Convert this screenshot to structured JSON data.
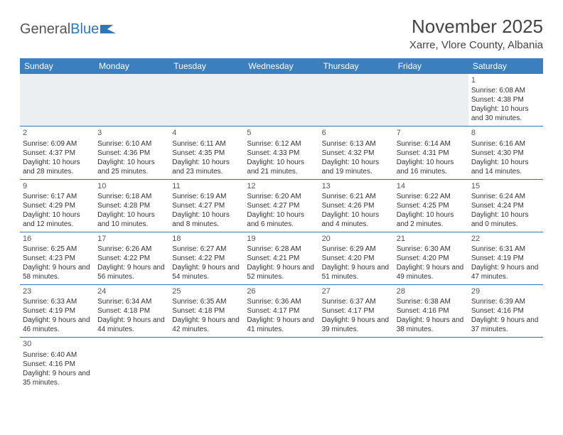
{
  "logo": {
    "text_general": "General",
    "text_blue": "Blue"
  },
  "header": {
    "title": "November 2025",
    "location": "Xarre, Vlore County, Albania"
  },
  "colors": {
    "header_bg": "#3b7fbf",
    "header_text": "#ffffff",
    "border": "#2f77b7",
    "text": "#333333",
    "empty_bg": "#eceff1",
    "logo_blue": "#2f77b7",
    "logo_gray": "#555555"
  },
  "calendar": {
    "weekdays": [
      "Sunday",
      "Monday",
      "Tuesday",
      "Wednesday",
      "Thursday",
      "Friday",
      "Saturday"
    ],
    "weeks": [
      [
        null,
        null,
        null,
        null,
        null,
        null,
        {
          "day": "1",
          "sunrise": "Sunrise: 6:08 AM",
          "sunset": "Sunset: 4:38 PM",
          "daylight": "Daylight: 10 hours and 30 minutes."
        }
      ],
      [
        {
          "day": "2",
          "sunrise": "Sunrise: 6:09 AM",
          "sunset": "Sunset: 4:37 PM",
          "daylight": "Daylight: 10 hours and 28 minutes."
        },
        {
          "day": "3",
          "sunrise": "Sunrise: 6:10 AM",
          "sunset": "Sunset: 4:36 PM",
          "daylight": "Daylight: 10 hours and 25 minutes."
        },
        {
          "day": "4",
          "sunrise": "Sunrise: 6:11 AM",
          "sunset": "Sunset: 4:35 PM",
          "daylight": "Daylight: 10 hours and 23 minutes."
        },
        {
          "day": "5",
          "sunrise": "Sunrise: 6:12 AM",
          "sunset": "Sunset: 4:33 PM",
          "daylight": "Daylight: 10 hours and 21 minutes."
        },
        {
          "day": "6",
          "sunrise": "Sunrise: 6:13 AM",
          "sunset": "Sunset: 4:32 PM",
          "daylight": "Daylight: 10 hours and 19 minutes."
        },
        {
          "day": "7",
          "sunrise": "Sunrise: 6:14 AM",
          "sunset": "Sunset: 4:31 PM",
          "daylight": "Daylight: 10 hours and 16 minutes."
        },
        {
          "day": "8",
          "sunrise": "Sunrise: 6:16 AM",
          "sunset": "Sunset: 4:30 PM",
          "daylight": "Daylight: 10 hours and 14 minutes."
        }
      ],
      [
        {
          "day": "9",
          "sunrise": "Sunrise: 6:17 AM",
          "sunset": "Sunset: 4:29 PM",
          "daylight": "Daylight: 10 hours and 12 minutes."
        },
        {
          "day": "10",
          "sunrise": "Sunrise: 6:18 AM",
          "sunset": "Sunset: 4:28 PM",
          "daylight": "Daylight: 10 hours and 10 minutes."
        },
        {
          "day": "11",
          "sunrise": "Sunrise: 6:19 AM",
          "sunset": "Sunset: 4:27 PM",
          "daylight": "Daylight: 10 hours and 8 minutes."
        },
        {
          "day": "12",
          "sunrise": "Sunrise: 6:20 AM",
          "sunset": "Sunset: 4:27 PM",
          "daylight": "Daylight: 10 hours and 6 minutes."
        },
        {
          "day": "13",
          "sunrise": "Sunrise: 6:21 AM",
          "sunset": "Sunset: 4:26 PM",
          "daylight": "Daylight: 10 hours and 4 minutes."
        },
        {
          "day": "14",
          "sunrise": "Sunrise: 6:22 AM",
          "sunset": "Sunset: 4:25 PM",
          "daylight": "Daylight: 10 hours and 2 minutes."
        },
        {
          "day": "15",
          "sunrise": "Sunrise: 6:24 AM",
          "sunset": "Sunset: 4:24 PM",
          "daylight": "Daylight: 10 hours and 0 minutes."
        }
      ],
      [
        {
          "day": "16",
          "sunrise": "Sunrise: 6:25 AM",
          "sunset": "Sunset: 4:23 PM",
          "daylight": "Daylight: 9 hours and 58 minutes."
        },
        {
          "day": "17",
          "sunrise": "Sunrise: 6:26 AM",
          "sunset": "Sunset: 4:22 PM",
          "daylight": "Daylight: 9 hours and 56 minutes."
        },
        {
          "day": "18",
          "sunrise": "Sunrise: 6:27 AM",
          "sunset": "Sunset: 4:22 PM",
          "daylight": "Daylight: 9 hours and 54 minutes."
        },
        {
          "day": "19",
          "sunrise": "Sunrise: 6:28 AM",
          "sunset": "Sunset: 4:21 PM",
          "daylight": "Daylight: 9 hours and 52 minutes."
        },
        {
          "day": "20",
          "sunrise": "Sunrise: 6:29 AM",
          "sunset": "Sunset: 4:20 PM",
          "daylight": "Daylight: 9 hours and 51 minutes."
        },
        {
          "day": "21",
          "sunrise": "Sunrise: 6:30 AM",
          "sunset": "Sunset: 4:20 PM",
          "daylight": "Daylight: 9 hours and 49 minutes."
        },
        {
          "day": "22",
          "sunrise": "Sunrise: 6:31 AM",
          "sunset": "Sunset: 4:19 PM",
          "daylight": "Daylight: 9 hours and 47 minutes."
        }
      ],
      [
        {
          "day": "23",
          "sunrise": "Sunrise: 6:33 AM",
          "sunset": "Sunset: 4:19 PM",
          "daylight": "Daylight: 9 hours and 46 minutes."
        },
        {
          "day": "24",
          "sunrise": "Sunrise: 6:34 AM",
          "sunset": "Sunset: 4:18 PM",
          "daylight": "Daylight: 9 hours and 44 minutes."
        },
        {
          "day": "25",
          "sunrise": "Sunrise: 6:35 AM",
          "sunset": "Sunset: 4:18 PM",
          "daylight": "Daylight: 9 hours and 42 minutes."
        },
        {
          "day": "26",
          "sunrise": "Sunrise: 6:36 AM",
          "sunset": "Sunset: 4:17 PM",
          "daylight": "Daylight: 9 hours and 41 minutes."
        },
        {
          "day": "27",
          "sunrise": "Sunrise: 6:37 AM",
          "sunset": "Sunset: 4:17 PM",
          "daylight": "Daylight: 9 hours and 39 minutes."
        },
        {
          "day": "28",
          "sunrise": "Sunrise: 6:38 AM",
          "sunset": "Sunset: 4:16 PM",
          "daylight": "Daylight: 9 hours and 38 minutes."
        },
        {
          "day": "29",
          "sunrise": "Sunrise: 6:39 AM",
          "sunset": "Sunset: 4:16 PM",
          "daylight": "Daylight: 9 hours and 37 minutes."
        }
      ],
      [
        {
          "day": "30",
          "sunrise": "Sunrise: 6:40 AM",
          "sunset": "Sunset: 4:16 PM",
          "daylight": "Daylight: 9 hours and 35 minutes."
        },
        null,
        null,
        null,
        null,
        null,
        null
      ]
    ]
  }
}
